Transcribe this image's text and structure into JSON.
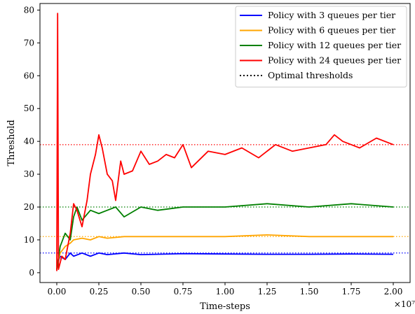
{
  "chart_data": {
    "type": "line",
    "title": "",
    "xlabel": "Time-steps",
    "ylabel": "Threshold",
    "x_offset_text": "×10⁷",
    "xlim": [
      -0.1,
      2.1
    ],
    "ylim": [
      -3,
      82
    ],
    "x_ticks": [
      0.0,
      0.25,
      0.5,
      0.75,
      1.0,
      1.25,
      1.5,
      1.75,
      2.0
    ],
    "x_tick_labels": [
      "0.00",
      "0.25",
      "0.50",
      "0.75",
      "1.00",
      "1.25",
      "1.50",
      "1.75",
      "2.00"
    ],
    "y_ticks": [
      0,
      10,
      20,
      30,
      40,
      50,
      60,
      70,
      80
    ],
    "y_tick_labels": [
      "0",
      "10",
      "20",
      "30",
      "40",
      "50",
      "60",
      "70",
      "80"
    ],
    "grid": false,
    "legend_position": "top-right",
    "series": [
      {
        "name": "Policy with 3 queues per tier",
        "color": "#0000ff",
        "x": [
          0.0,
          0.02,
          0.05,
          0.08,
          0.1,
          0.15,
          0.2,
          0.25,
          0.3,
          0.4,
          0.5,
          0.75,
          1.0,
          1.25,
          1.5,
          1.75,
          2.0
        ],
        "y": [
          2,
          5,
          4,
          6,
          5,
          6,
          5,
          6,
          5.5,
          6,
          5.5,
          5.8,
          5.7,
          5.6,
          5.6,
          5.7,
          5.6
        ]
      },
      {
        "name": "Policy with 6 queues per tier",
        "color": "#ffa500",
        "x": [
          0.0,
          0.02,
          0.05,
          0.08,
          0.1,
          0.15,
          0.2,
          0.25,
          0.3,
          0.4,
          0.5,
          0.75,
          1.0,
          1.25,
          1.5,
          1.75,
          2.0
        ],
        "y": [
          1,
          6,
          8,
          9,
          10,
          10.5,
          10,
          11,
          10.5,
          11,
          11,
          11,
          11,
          11.5,
          11,
          11,
          11
        ]
      },
      {
        "name": "Policy with 12 queues per tier",
        "color": "#008000",
        "x": [
          0.0,
          0.02,
          0.05,
          0.08,
          0.1,
          0.12,
          0.15,
          0.2,
          0.25,
          0.3,
          0.35,
          0.4,
          0.5,
          0.6,
          0.75,
          1.0,
          1.25,
          1.5,
          1.75,
          2.0
        ],
        "y": [
          1,
          8,
          12,
          10,
          17,
          20,
          16,
          19,
          18,
          19,
          20,
          17,
          20,
          19,
          20,
          20,
          21,
          20,
          21,
          20
        ]
      },
      {
        "name": "Policy with 24 queues per tier",
        "color": "#ff0000",
        "x": [
          0.0,
          0.005,
          0.01,
          0.03,
          0.05,
          0.08,
          0.1,
          0.12,
          0.15,
          0.18,
          0.2,
          0.23,
          0.25,
          0.27,
          0.3,
          0.33,
          0.35,
          0.38,
          0.4,
          0.45,
          0.5,
          0.55,
          0.6,
          0.65,
          0.7,
          0.75,
          0.8,
          0.9,
          1.0,
          1.1,
          1.2,
          1.3,
          1.4,
          1.5,
          1.6,
          1.65,
          1.7,
          1.8,
          1.9,
          2.0
        ],
        "y": [
          0.5,
          79,
          1,
          5,
          4,
          12,
          21,
          19,
          14,
          22,
          30,
          36,
          42,
          38,
          30,
          28,
          22,
          34,
          30,
          31,
          37,
          33,
          34,
          36,
          35,
          39,
          32,
          37,
          36,
          38,
          35,
          39,
          37,
          38,
          39,
          42,
          40,
          38,
          41,
          39
        ]
      },
      {
        "name": "Optimal thresholds",
        "color": "#000000",
        "style": "dotted",
        "hlines": [
          {
            "y": 6,
            "color": "#0000ff"
          },
          {
            "y": 11,
            "color": "#ffa500"
          },
          {
            "y": 20,
            "color": "#008000"
          },
          {
            "y": 39,
            "color": "#ff0000"
          }
        ]
      }
    ]
  }
}
